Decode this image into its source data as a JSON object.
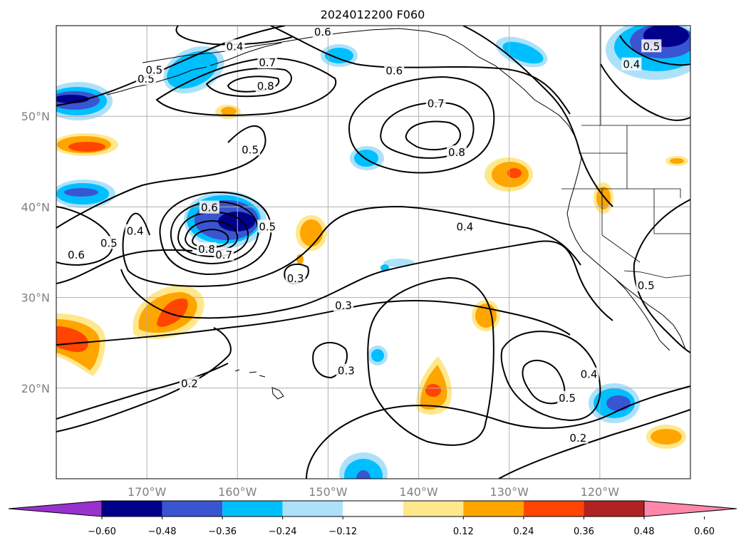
{
  "title": "2024012200 F060",
  "map": {
    "lat_range": [
      10,
      60
    ],
    "lon_range": [
      -180,
      -110
    ],
    "lat_ticks": [
      {
        "value": 20,
        "label": "20°N"
      },
      {
        "value": 30,
        "label": "30°N"
      },
      {
        "value": 40,
        "label": "40°N"
      },
      {
        "value": 50,
        "label": "50°N"
      }
    ],
    "lon_ticks": [
      {
        "value": -170,
        "label": "170°W"
      },
      {
        "value": -160,
        "label": "160°W"
      },
      {
        "value": -150,
        "label": "150°W"
      },
      {
        "value": -140,
        "label": "140°W"
      },
      {
        "value": -130,
        "label": "130°W"
      },
      {
        "value": -120,
        "label": "120°W"
      }
    ],
    "grid": true
  },
  "colorbar": {
    "orientation": "horizontal",
    "extend": "both",
    "under_color": "#9932CC",
    "over_color": "#FF88AA",
    "bins": [
      {
        "color": "#00008B"
      },
      {
        "color": "#3A55D1"
      },
      {
        "color": "#00BFFF"
      },
      {
        "color": "#ADE1FA"
      },
      {
        "color": "#FFFFFF"
      },
      {
        "color": "#FFE88C"
      },
      {
        "color": "#FFA500"
      },
      {
        "color": "#FF4500"
      },
      {
        "color": "#B22222"
      }
    ],
    "tick_labels": [
      "−0.60",
      "−0.48",
      "−0.36",
      "−0.24",
      "−0.12",
      "0.12",
      "0.24",
      "0.36",
      "0.48",
      "0.60"
    ]
  },
  "contour_labels": [
    {
      "text": "0.4",
      "lon": -160.3,
      "lat": 57.7
    },
    {
      "text": "0.6",
      "lon": -150.6,
      "lat": 59.3
    },
    {
      "text": "0.7",
      "lon": -156.7,
      "lat": 55.9
    },
    {
      "text": "0.8",
      "lon": -156.9,
      "lat": 53.3
    },
    {
      "text": "0.5",
      "lon": -170.1,
      "lat": 54.1
    },
    {
      "text": "0.6",
      "lon": -142.7,
      "lat": 55.0
    },
    {
      "text": "0.7",
      "lon": -138.1,
      "lat": 51.4
    },
    {
      "text": "0.8",
      "lon": -135.8,
      "lat": 46.0
    },
    {
      "text": "0.5",
      "lon": -169.2,
      "lat": 55.1
    },
    {
      "text": "0.5",
      "lon": -114.3,
      "lat": 57.7
    },
    {
      "text": "0.4",
      "lon": -116.5,
      "lat": 55.7
    },
    {
      "text": "0.5",
      "lon": -158.6,
      "lat": 46.3
    },
    {
      "text": "0.6",
      "lon": -163.1,
      "lat": 39.9
    },
    {
      "text": "0.5",
      "lon": -156.7,
      "lat": 37.8
    },
    {
      "text": "0.8",
      "lon": -163.4,
      "lat": 35.3
    },
    {
      "text": "0.7",
      "lon": -161.5,
      "lat": 34.7
    },
    {
      "text": "0.4",
      "lon": -171.3,
      "lat": 37.3
    },
    {
      "text": "0.5",
      "lon": -174.2,
      "lat": 36.0
    },
    {
      "text": "0.6",
      "lon": -177.8,
      "lat": 34.7
    },
    {
      "text": "0.4",
      "lon": -134.9,
      "lat": 37.8
    },
    {
      "text": "0.3",
      "lon": -153.6,
      "lat": 32.1
    },
    {
      "text": "0.3",
      "lon": -148.3,
      "lat": 29.1
    },
    {
      "text": "0.3",
      "lon": -148.0,
      "lat": 21.9
    },
    {
      "text": "0.2",
      "lon": -165.3,
      "lat": 20.5
    },
    {
      "text": "0.5",
      "lon": -114.9,
      "lat": 31.3
    },
    {
      "text": "0.4",
      "lon": -121.2,
      "lat": 21.5
    },
    {
      "text": "0.5",
      "lon": -123.6,
      "lat": 18.9
    },
    {
      "text": "0.2",
      "lon": -122.4,
      "lat": 14.5
    }
  ]
}
